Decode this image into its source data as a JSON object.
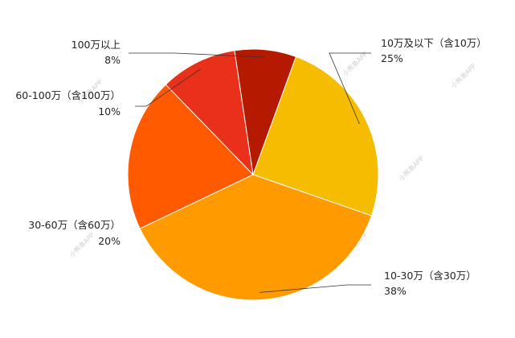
{
  "chart_data": {
    "type": "pie",
    "title": "",
    "slices": [
      {
        "label": "10万及以下（含10万）",
        "value": 25,
        "percent_label": "25%",
        "color": "#F5BC00"
      },
      {
        "label": "10-30万（含30万）",
        "value": 38,
        "percent_label": "38%",
        "color": "#FF9A00"
      },
      {
        "label": "30-60万（含60万）",
        "value": 20,
        "percent_label": "20%",
        "color": "#FF5A00"
      },
      {
        "label": "60-100万（含100万）",
        "value": 10,
        "percent_label": "10%",
        "color": "#E8301A"
      },
      {
        "label": "100万以上",
        "value": 8,
        "percent_label": "8%",
        "color": "#B51A00"
      }
    ],
    "start_angle_deg": 20,
    "direction": "clockwise",
    "legend": "none",
    "watermark": "小熊鱼APP"
  }
}
